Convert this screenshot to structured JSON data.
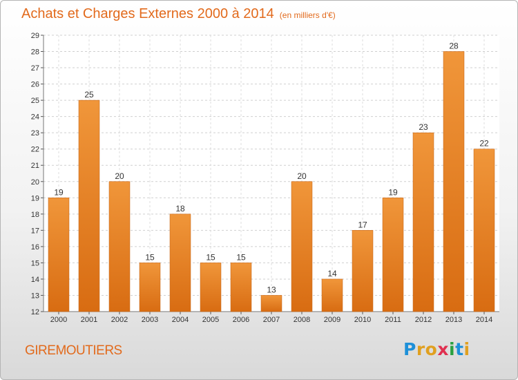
{
  "chart_data": {
    "type": "bar",
    "title": "Achats et Charges Externes 2000 à 2014",
    "subtitle": "(en milliers d'€)",
    "categories": [
      "2000",
      "2001",
      "2002",
      "2003",
      "2004",
      "2005",
      "2006",
      "2007",
      "2008",
      "2009",
      "2010",
      "2011",
      "2012",
      "2013",
      "2014"
    ],
    "values": [
      19,
      25,
      20,
      15,
      18,
      15,
      15,
      13,
      20,
      14,
      17,
      19,
      23,
      28,
      22
    ],
    "ylim": [
      12,
      29
    ],
    "yticks": [
      12,
      13,
      14,
      15,
      16,
      17,
      18,
      19,
      20,
      21,
      22,
      23,
      24,
      25,
      26,
      27,
      28,
      29
    ],
    "grid": true,
    "bar_color": "#f0963a",
    "bar_color_dark": "#d86c12"
  },
  "footer": {
    "city": "GIREMOUTIERS",
    "logo_letters": [
      "P",
      "r",
      "o",
      "x",
      "i",
      "t",
      "i"
    ],
    "logo_colors": [
      "#1e90d8",
      "#e0a020",
      "#e0a020",
      "#e03050",
      "#2aa040",
      "#1e90d8",
      "#e0a020"
    ]
  }
}
